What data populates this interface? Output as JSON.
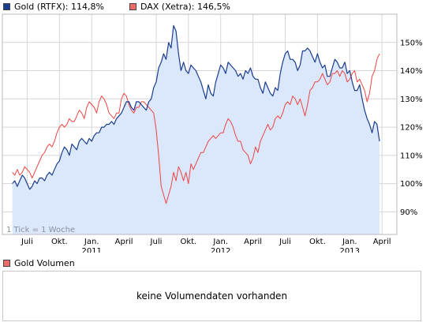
{
  "legend": {
    "gold_label": "Gold (RTFX): 114,8%",
    "dax_label": "DAX (Xetra): 146,5%"
  },
  "tick_note": "1 Tick = 1 Woche",
  "volume": {
    "legend_label": "Gold Volumen",
    "message": "keine Volumendaten vorhanden"
  },
  "colors": {
    "gold_line": "#1a3d8f",
    "gold_fill": "#dbe7fb",
    "dax_line": "#ee4444",
    "grid": "#d6d6d6",
    "frame": "#b8b8b8"
  },
  "chart_data": {
    "type": "line",
    "y_unit": "%",
    "ylim": [
      82,
      160
    ],
    "y_ticks": [
      90,
      100,
      110,
      120,
      130,
      140,
      150
    ],
    "y_tick_labels": [
      "90%",
      "100%",
      "110%",
      "120%",
      "130%",
      "140%",
      "150%"
    ],
    "x_tick_labels": [
      "Juli",
      "Okt.",
      "Jan.",
      "April",
      "Juli",
      "Okt.",
      "Jan.",
      "April",
      "Juli",
      "Okt.",
      "Jan.",
      "April"
    ],
    "x_tick_week": [
      6,
      19,
      32,
      45,
      58,
      71,
      84,
      97,
      110,
      123,
      136,
      149
    ],
    "year_labels": [
      "2011",
      "2012",
      "2013"
    ],
    "year_label_week": [
      32,
      84,
      136
    ],
    "x_week_range": [
      -4,
      155
    ],
    "grid": true,
    "series": [
      {
        "name": "Gold (RTFX)",
        "values": [
          100,
          101,
          99,
          101,
          103,
          102,
          100,
          98,
          99,
          101,
          100,
          102,
          102,
          101,
          103,
          104,
          103,
          105,
          107,
          108,
          111,
          113,
          112,
          110,
          114,
          113,
          112,
          115,
          116,
          115,
          114,
          116,
          115,
          117,
          118,
          118,
          120,
          120,
          121,
          121,
          122,
          121,
          123,
          124,
          125,
          127,
          129,
          129,
          127,
          126,
          129,
          129,
          128,
          127,
          126,
          129,
          130,
          134,
          136,
          141,
          143,
          146,
          144,
          150,
          148,
          156,
          154,
          146,
          140,
          143,
          140,
          139,
          142,
          141,
          140,
          138,
          136,
          133,
          130,
          135,
          132,
          131,
          136,
          139,
          142,
          141,
          139,
          143,
          142,
          141,
          140,
          138,
          139,
          137,
          140,
          139,
          141,
          138,
          137,
          137,
          134,
          132,
          136,
          134,
          132,
          131,
          134,
          133,
          139,
          143,
          146,
          147,
          144,
          144,
          143,
          140,
          142,
          147,
          147,
          148,
          147,
          145,
          143,
          146,
          143,
          141,
          142,
          138,
          138,
          141,
          144,
          143,
          141,
          141,
          143,
          139,
          140,
          136,
          133,
          133,
          135,
          130,
          126,
          123,
          121,
          118,
          122,
          121,
          115
        ]
      },
      {
        "name": "DAX (Xetra)",
        "values": [
          104,
          103,
          105,
          103,
          104,
          106,
          105,
          104,
          102,
          104,
          106,
          108,
          110,
          111,
          113,
          114,
          113,
          115,
          118,
          120,
          121,
          120,
          121,
          123,
          122,
          122,
          124,
          126,
          125,
          123,
          127,
          129,
          128,
          127,
          125,
          129,
          131,
          130,
          128,
          125,
          124,
          123,
          125,
          125,
          130,
          132,
          131,
          128,
          126,
          125,
          127,
          127,
          129,
          129,
          128,
          127,
          126,
          125,
          119,
          110,
          99,
          96,
          93,
          96,
          99,
          104,
          101,
          106,
          104,
          101,
          104,
          100,
          107,
          105,
          107,
          109,
          111,
          111,
          113,
          115,
          116,
          117,
          116,
          117,
          118,
          118,
          121,
          123,
          122,
          120,
          117,
          115,
          115,
          112,
          111,
          110,
          107,
          109,
          113,
          111,
          115,
          117,
          119,
          121,
          119,
          120,
          123,
          124,
          123,
          125,
          128,
          129,
          128,
          131,
          130,
          128,
          130,
          127,
          124,
          128,
          133,
          134,
          136,
          136,
          137,
          139,
          137,
          135,
          136,
          139,
          139,
          140,
          138,
          140,
          139,
          136,
          137,
          139,
          140,
          136,
          137,
          135,
          133,
          129,
          132,
          138,
          140,
          144,
          146
        ]
      }
    ]
  }
}
